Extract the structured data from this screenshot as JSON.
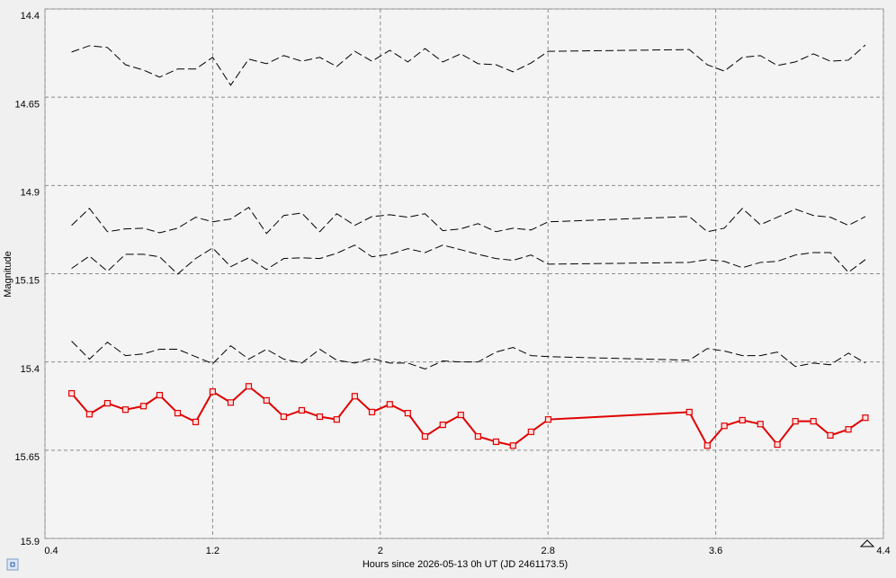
{
  "chart_data": {
    "type": "line",
    "x_label": "Hours since 2026-05-13 0h UT (JD 2461173.5)",
    "y_label": "Magnitude",
    "xlim": [
      0.4,
      4.4
    ],
    "xticks": [
      0.4,
      1.2,
      2,
      2.8,
      3.6,
      4.4
    ],
    "ylim": [
      15.9,
      14.4
    ],
    "yticks": [
      14.4,
      14.65,
      14.9,
      15.15,
      15.4,
      15.65,
      15.9
    ],
    "grid": true,
    "x": [
      0.527,
      0.612,
      0.698,
      0.784,
      0.87,
      0.947,
      1.033,
      1.119,
      1.2,
      1.286,
      1.372,
      1.457,
      1.539,
      1.625,
      1.711,
      1.792,
      1.878,
      1.96,
      2.045,
      2.131,
      2.213,
      2.298,
      2.384,
      2.466,
      2.552,
      2.633,
      2.719,
      2.801,
      3.474,
      3.56,
      3.641,
      3.727,
      3.813,
      3.894,
      3.98,
      4.066,
      4.147,
      4.233,
      4.314
    ],
    "series": [
      {
        "color": "#000000",
        "dashed": true,
        "markers": false,
        "values": [
          14.522,
          14.504,
          14.509,
          14.558,
          14.573,
          14.593,
          14.57,
          14.57,
          14.537,
          14.616,
          14.542,
          14.555,
          14.532,
          14.548,
          14.537,
          14.563,
          14.52,
          14.548,
          14.517,
          14.55,
          14.512,
          14.55,
          14.527,
          14.555,
          14.558,
          14.578,
          14.553,
          14.52,
          14.515,
          14.558,
          14.576,
          14.537,
          14.532,
          14.56,
          14.55,
          14.527,
          14.548,
          14.545,
          14.502
        ]
      },
      {
        "color": "#000000",
        "dashed": true,
        "markers": false,
        "values": [
          15.013,
          14.965,
          15.031,
          15.023,
          15.021,
          15.034,
          15.021,
          14.99,
          15.003,
          14.995,
          14.962,
          15.036,
          14.985,
          14.978,
          15.031,
          14.98,
          15.013,
          14.988,
          14.983,
          14.99,
          14.98,
          15.028,
          15.023,
          15.008,
          15.031,
          15.021,
          15.026,
          15.003,
          14.988,
          15.031,
          15.021,
          14.965,
          15.011,
          14.99,
          14.967,
          14.985,
          14.99,
          15.013,
          14.988
        ]
      },
      {
        "color": "#000000",
        "dashed": true,
        "markers": false,
        "values": [
          15.135,
          15.1,
          15.143,
          15.095,
          15.095,
          15.102,
          15.151,
          15.107,
          15.077,
          15.13,
          15.105,
          15.138,
          15.107,
          15.105,
          15.107,
          15.092,
          15.069,
          15.102,
          15.095,
          15.079,
          15.09,
          15.069,
          15.082,
          15.095,
          15.107,
          15.112,
          15.097,
          15.123,
          15.118,
          15.11,
          15.115,
          15.133,
          15.118,
          15.115,
          15.097,
          15.09,
          15.09,
          15.146,
          15.11
        ]
      },
      {
        "color": "#000000",
        "dashed": true,
        "markers": false,
        "values": [
          15.341,
          15.392,
          15.344,
          15.382,
          15.377,
          15.364,
          15.364,
          15.385,
          15.405,
          15.354,
          15.392,
          15.364,
          15.392,
          15.403,
          15.364,
          15.395,
          15.403,
          15.39,
          15.403,
          15.403,
          15.42,
          15.397,
          15.4,
          15.4,
          15.372,
          15.359,
          15.382,
          15.385,
          15.395,
          15.362,
          15.369,
          15.382,
          15.382,
          15.372,
          15.413,
          15.403,
          15.408,
          15.375,
          15.403
        ]
      },
      {
        "color": "#e00000",
        "dashed": false,
        "markers": true,
        "values": [
          15.489,
          15.548,
          15.517,
          15.535,
          15.525,
          15.494,
          15.545,
          15.57,
          15.484,
          15.515,
          15.469,
          15.509,
          15.555,
          15.537,
          15.555,
          15.563,
          15.497,
          15.542,
          15.52,
          15.545,
          15.611,
          15.578,
          15.55,
          15.611,
          15.626,
          15.637,
          15.598,
          15.563,
          15.542,
          15.637,
          15.581,
          15.565,
          15.576,
          15.634,
          15.568,
          15.568,
          15.608,
          15.591,
          15.558
        ]
      }
    ]
  }
}
